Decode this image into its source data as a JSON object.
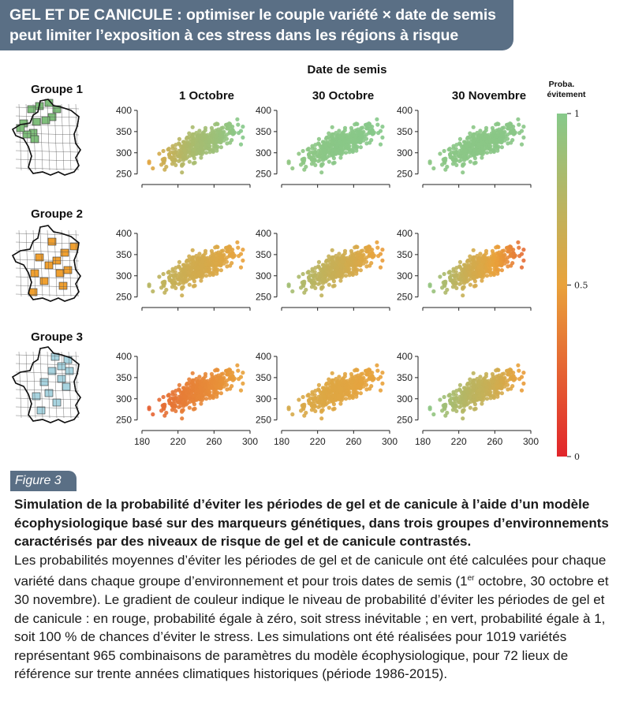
{
  "banner": {
    "line1": "GEL ET DE CANICULE : optimiser le couple variété × date de semis",
    "line2": "peut limiter l’exposition à ces stress dans les régions à risque"
  },
  "colors": {
    "banner_bg": "#5a6f85",
    "high_probability": "#86c98a",
    "mid_probability": "#e9a23b",
    "low_probability": "#e1252b",
    "group1_map": "#7fbf7b",
    "group2_map": "#f0a030",
    "group3_map": "#a8d4e0"
  },
  "figure_tag": "Figure 3",
  "caption": {
    "title": "Simulation de la probabilité d’éviter les périodes de gel et de canicule à l’aide d’un modèle écophysiologique basé sur des marqueurs génétiques, dans trois groupes d’environnements caractérisés par des niveaux de risque de gel et de canicule contrastés.",
    "body_part1": "Les probabilités moyennes d’éviter les périodes de gel et de canicule ont été calculées pour chaque variété dans chaque groupe d’environnement et pour trois dates de semis (1",
    "body_sup": "er",
    "body_part2": " octobre, 30 octobre et 30 novembre). Le gradient de couleur indique le niveau de probabilité d’éviter les périodes de gel et de canicule : en rouge, probabilité égale à zéro, soit stress inévitable ; en vert, probabilité égale à 1, soit 100 % de chances d’éviter le stress. Les simulations ont été réalisées pour 1019 variétés représentant 965 combinaisons de paramètres du modèle écophysiologique, pour 72 lieux de référence sur trente années climatiques historiques (période 1986-2015)."
  },
  "chart_data": {
    "type": "scatter",
    "title": "Date de semis",
    "columns": [
      "1 Octobre",
      "30 Octobre",
      "30 Novembre"
    ],
    "rows": [
      "Groupe 1",
      "Groupe 2",
      "Groupe 3"
    ],
    "xlim": [
      180,
      300
    ],
    "ylim": [
      240,
      400
    ],
    "x_ticks": [
      180,
      220,
      260,
      300
    ],
    "y_ticks": [
      250,
      300,
      350,
      400
    ],
    "colorbar": {
      "label_line1": "Proba.",
      "label_line2": "évitement",
      "ticks": [
        0,
        0.5,
        1
      ],
      "tick_labels": [
        "0",
        "0.5",
        "1"
      ],
      "colors": [
        "#e1252b",
        "#e9a23b",
        "#86c98a"
      ]
    },
    "point_cloud": {
      "n_points": 1019,
      "x_center": 245,
      "y_center": 320,
      "x_sd": 20,
      "y_sd": 22,
      "correlation": 0.75
    },
    "panels": [
      {
        "row": "Groupe 1",
        "column": "1 Octobre",
        "prob_low_x": 0.55,
        "prob_high_x": 1.0,
        "prob_mid": 0.98
      },
      {
        "row": "Groupe 1",
        "column": "30 Octobre",
        "prob_low_x": 0.95,
        "prob_high_x": 1.0,
        "prob_mid": 0.99
      },
      {
        "row": "Groupe 1",
        "column": "30 Novembre",
        "prob_low_x": 0.97,
        "prob_high_x": 0.98,
        "prob_mid": 0.98
      },
      {
        "row": "Groupe 2",
        "column": "1 Octobre",
        "prob_low_x": 0.75,
        "prob_high_x": 0.5,
        "prob_mid": 0.6
      },
      {
        "row": "Groupe 2",
        "column": "30 Octobre",
        "prob_low_x": 0.85,
        "prob_high_x": 0.48,
        "prob_mid": 0.65
      },
      {
        "row": "Groupe 2",
        "column": "30 Novembre",
        "prob_low_x": 0.92,
        "prob_high_x": 0.3,
        "prob_mid": 0.55
      },
      {
        "row": "Groupe 3",
        "column": "1 Octobre",
        "prob_low_x": 0.25,
        "prob_high_x": 0.5,
        "prob_mid": 0.4
      },
      {
        "row": "Groupe 3",
        "column": "30 Octobre",
        "prob_low_x": 0.6,
        "prob_high_x": 0.5,
        "prob_mid": 0.55
      },
      {
        "row": "Groupe 3",
        "column": "30 Novembre",
        "prob_low_x": 0.95,
        "prob_high_x": 0.48,
        "prob_mid": 0.7
      }
    ]
  }
}
